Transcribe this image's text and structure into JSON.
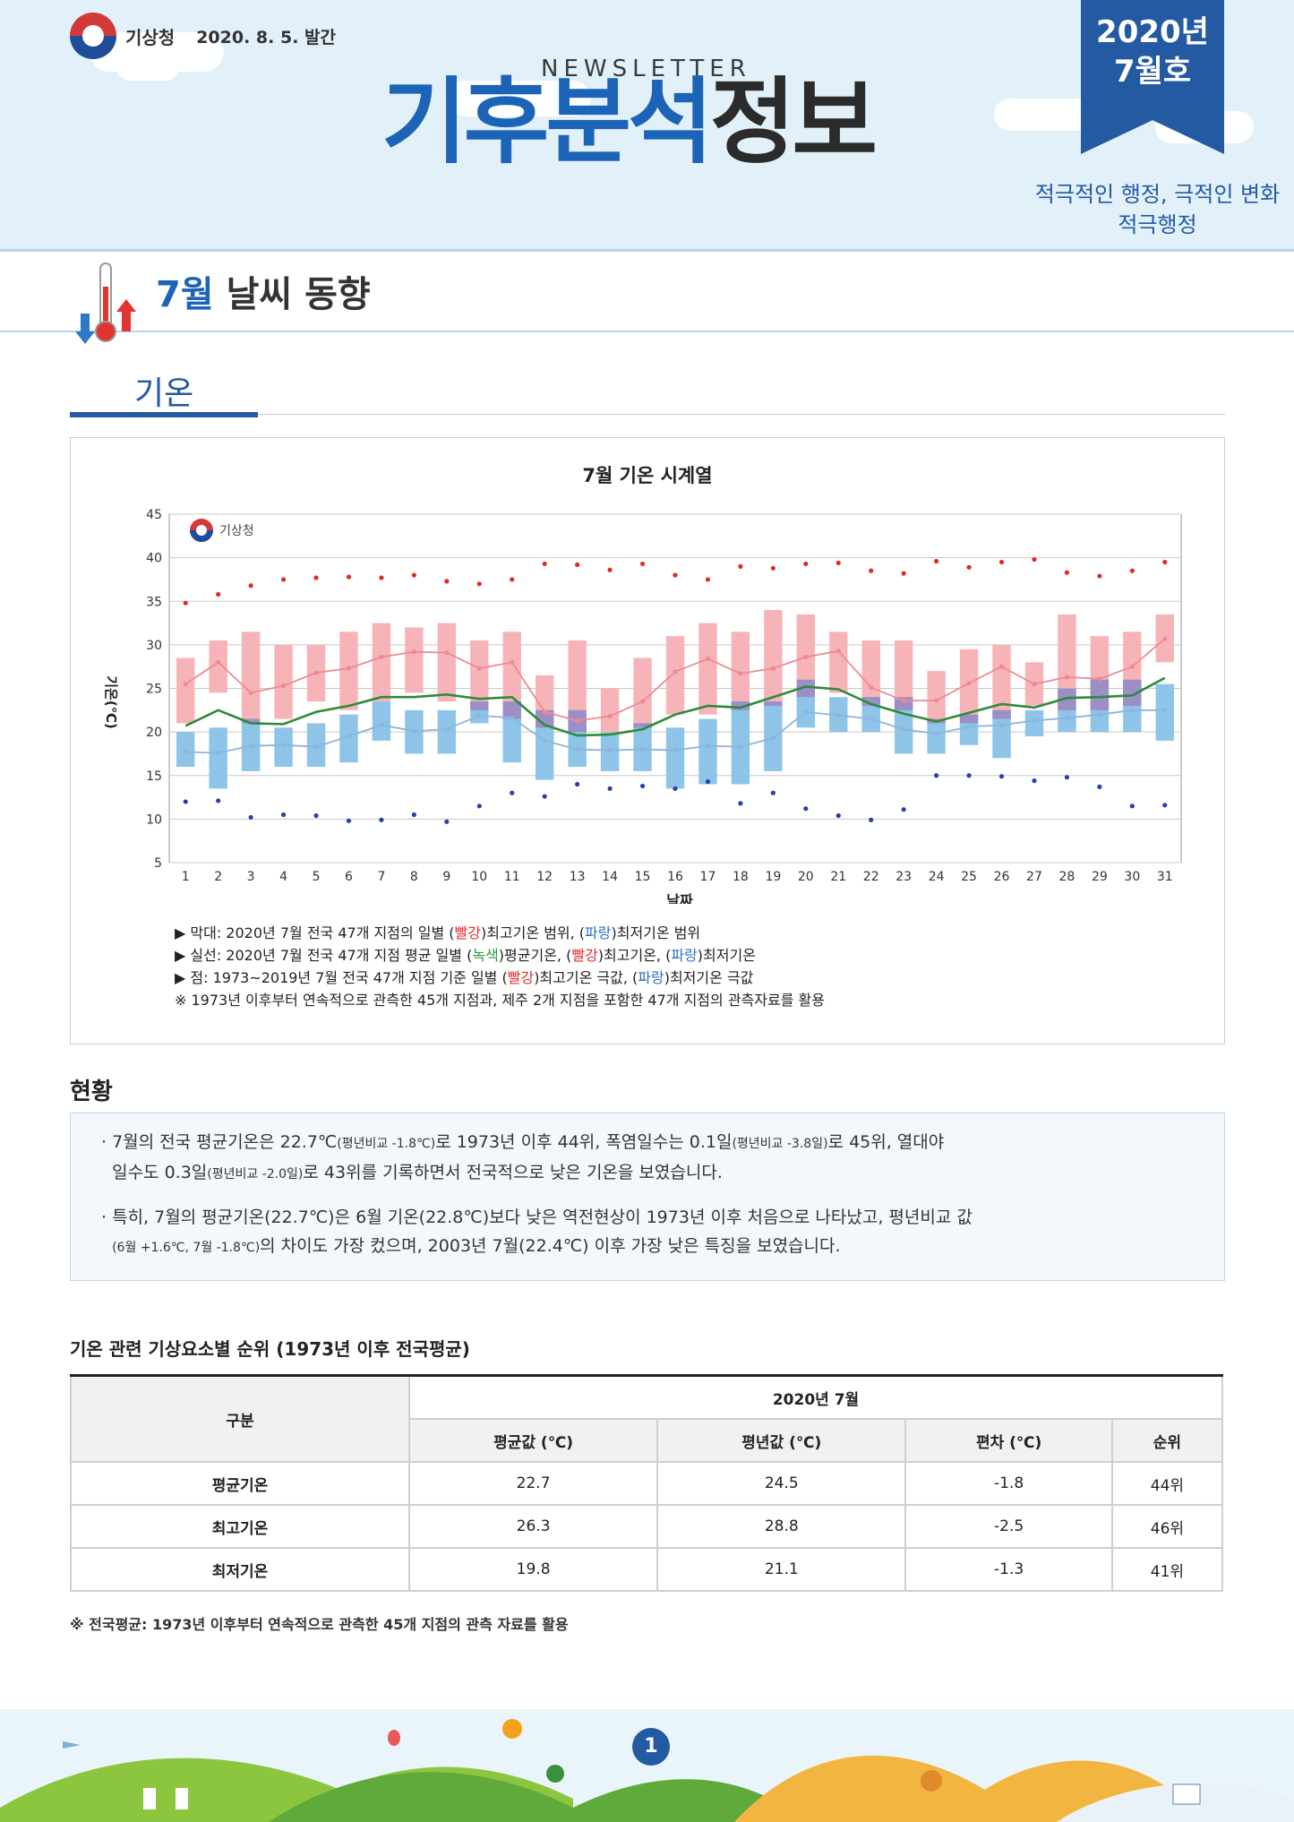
{
  "header": {
    "org": "기상청",
    "pub_date": "2020. 8. 5. 발간",
    "newsletter": "NEWSLETTER",
    "title_blue": "기후분석",
    "title_dark": "정보",
    "issue_year": "2020년",
    "issue_month": "7월호",
    "slogan_line1": "적극적인 행정, 극적인 변화",
    "slogan_line2": "적극행정"
  },
  "section": {
    "title_month": "7월",
    "title_rest": "날씨 동향",
    "subtab": "기온"
  },
  "chart_data": {
    "type": "bar",
    "title": "7월 기온 시계열",
    "watermark": "기상청",
    "xlabel": "날짜",
    "ylabel": "기온(℃)",
    "ylim": [
      5,
      45
    ],
    "yticks": [
      5,
      10,
      15,
      20,
      25,
      30,
      35,
      40,
      45
    ],
    "x": [
      1,
      2,
      3,
      4,
      5,
      6,
      7,
      8,
      9,
      10,
      11,
      12,
      13,
      14,
      15,
      16,
      17,
      18,
      19,
      20,
      21,
      22,
      23,
      24,
      25,
      26,
      27,
      28,
      29,
      30,
      31
    ],
    "max_range_lo": [
      21,
      24.5,
      21,
      21.5,
      23.5,
      22.5,
      23.5,
      24.5,
      23.5,
      22.5,
      21.5,
      20.5,
      20,
      20,
      20.5,
      22,
      22,
      22.5,
      23,
      24,
      24.5,
      23,
      22.5,
      21,
      21,
      21.5,
      23,
      22.5,
      22.5,
      23,
      28
    ],
    "max_range_hi": [
      28.5,
      30.5,
      31.5,
      30,
      30,
      31.5,
      32.5,
      32,
      32.5,
      30.5,
      31.5,
      26.5,
      30.5,
      25,
      28.5,
      31,
      32.5,
      31.5,
      34,
      33.5,
      31.5,
      30.5,
      30.5,
      27,
      29.5,
      30,
      28,
      33.5,
      31,
      31.5,
      33.5
    ],
    "min_range_lo": [
      16,
      13.5,
      15.5,
      16,
      16,
      16.5,
      19,
      17.5,
      17.5,
      21,
      16.5,
      14.5,
      16,
      15.5,
      15.5,
      13.5,
      14,
      14,
      15.5,
      20.5,
      20,
      20,
      17.5,
      17.5,
      18.5,
      17,
      19.5,
      20,
      20,
      20,
      19
    ],
    "min_range_hi": [
      20,
      20.5,
      21.5,
      20.5,
      21,
      22,
      23.5,
      22.5,
      22.5,
      23.5,
      23.5,
      22.5,
      22.5,
      20,
      21,
      20.5,
      21.5,
      23.5,
      23.5,
      26,
      24,
      24,
      24,
      21.5,
      22,
      22.5,
      22.5,
      25,
      26,
      26,
      25.5
    ],
    "series": [
      {
        "name": "평균기온",
        "values": [
          20.7,
          22.5,
          21,
          20.9,
          22.3,
          23,
          24,
          24,
          24.3,
          23.8,
          24,
          20.8,
          19.6,
          19.7,
          20.3,
          22,
          23,
          22.8,
          24,
          25.2,
          24.9,
          23.2,
          22.1,
          21.2,
          22.2,
          23.2,
          22.8,
          23.9,
          24,
          24.2,
          26.2
        ]
      },
      {
        "name": "최고기온",
        "values": [
          25.5,
          28,
          24.5,
          25.3,
          26.8,
          27.3,
          28.6,
          29.2,
          29.1,
          27.3,
          28,
          22.3,
          21.3,
          21.8,
          23.5,
          26.9,
          28.4,
          26.7,
          27.3,
          28.6,
          29.3,
          25.1,
          23.6,
          23.6,
          25.6,
          27.5,
          25.5,
          26.3,
          26.1,
          27.5,
          30.7
        ]
      },
      {
        "name": "최저기온",
        "values": [
          17.7,
          17.6,
          18.4,
          18.5,
          18.3,
          19.5,
          20.8,
          20.1,
          20.3,
          21.9,
          21.6,
          19,
          18,
          17.9,
          18,
          17.9,
          18.4,
          18.3,
          19.3,
          22.3,
          21.9,
          21.5,
          20.3,
          19.8,
          20.6,
          20.8,
          21.3,
          21.6,
          22,
          22.5,
          22.5
        ]
      },
      {
        "name": "최고기온 극값",
        "values": [
          34.8,
          35.8,
          36.8,
          37.5,
          37.7,
          37.8,
          37.7,
          38,
          37.3,
          37,
          37.5,
          39.3,
          39.2,
          38.6,
          39.3,
          38,
          37.5,
          39,
          38.8,
          39.3,
          39.4,
          38.5,
          38.2,
          39.6,
          38.9,
          39.5,
          39.8,
          38.3,
          37.9,
          38.5,
          39.5
        ]
      },
      {
        "name": "최저기온 극값",
        "values": [
          12,
          12.1,
          10.2,
          10.5,
          10.4,
          9.8,
          9.9,
          10.5,
          9.7,
          11.5,
          13,
          12.6,
          14,
          13.5,
          13.8,
          13.5,
          14.3,
          11.8,
          13,
          11.2,
          10.4,
          9.9,
          11.1,
          15,
          15,
          14.9,
          14.4,
          14.8,
          13.7,
          11.5,
          11.6
        ]
      }
    ],
    "colors": {
      "max_bar": "#f7b4b8",
      "min_bar": "#8ec4e8",
      "overlap": "#9b8fc6",
      "mean_line": "#2e8b3a",
      "max_line": "#f08a90",
      "min_line": "#8ab6e0",
      "max_dot": "#e02a2a",
      "min_dot": "#2a3fa8"
    }
  },
  "legend": {
    "line1": {
      "a": "▶ 막대: 2020년 7월 전국 47개 지점의 일별 (",
      "b": "빨강",
      "c": ")최고기온 범위, (",
      "d": "파랑",
      "e": ")최저기온 범위"
    },
    "line2": {
      "a": "▶ 실선: 2020년 7월 전국 47개 지점 평균 일별 (",
      "b": "녹색",
      "c": ")평균기온, (",
      "d": "빨강",
      "e": ")최고기온, (",
      "f": "파랑",
      "g": ")최저기온"
    },
    "line3": {
      "a": "▶ 점: 1973~2019년 7월 전국 47개 지점 기준 일별 (",
      "b": "빨강",
      "c": ")최고기온 극값, (",
      "d": "파랑",
      "e": ")최저기온 극값"
    },
    "line4": "※ 1973년 이후부터 연속적으로 관측한 45개 지점과, 제주 2개 지점을 포함한 47개 지점의 관측자료를 활용"
  },
  "status": {
    "title": "현황",
    "p1": {
      "a": "· 7월의 전국 평균기온은 22.7℃",
      "b": "(평년비교 -1.8℃)",
      "c": "로 1973년 이후 44위, 폭염일수는 0.1일",
      "d": "(평년비교 -3.8일)",
      "e": "로 45위, 열대야",
      "f": "일수도 0.3일",
      "g": "(평년비교 -2.0일)",
      "h": "로 43위를 기록하면서 전국적으로 낮은 기온을 보였습니다."
    },
    "p2": {
      "a": "· 특히, 7월의 평균기온(22.7℃)은 6월 기온(22.8℃)보다 낮은 역전현상이 1973년 이후 처음으로 나타났고, 평년비교 값",
      "b": "(6월 +1.6℃, 7월 -1.8℃)",
      "c": "의 차이도 가장 컸으며, 2003년 7월(22.4℃) 이후 가장 낮은 특징을 보였습니다."
    }
  },
  "table": {
    "caption": "기온 관련 기상요소별 순위 (1973년 이후 전국평균)",
    "group_header": "구분",
    "period_header": "2020년 7월",
    "columns": [
      "평균값 (℃)",
      "평년값 (℃)",
      "편차 (℃)",
      "순위"
    ],
    "rows": [
      {
        "label": "평균기온",
        "cells": [
          "22.7",
          "24.5",
          "-1.8",
          "44위"
        ]
      },
      {
        "label": "최고기온",
        "cells": [
          "26.3",
          "28.8",
          "-2.5",
          "46위"
        ]
      },
      {
        "label": "최저기온",
        "cells": [
          "19.8",
          "21.1",
          "-1.3",
          "41위"
        ]
      }
    ],
    "note": "※ 전국평균: 1973년 이후부터 연속적으로 관측한 45개 지점의 관측 자료를 활용"
  },
  "footer": {
    "page": "1"
  }
}
